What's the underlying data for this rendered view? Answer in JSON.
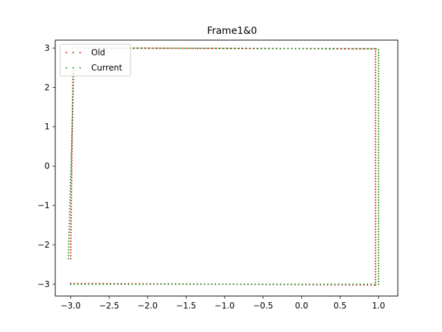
{
  "chart_data": {
    "type": "scatter",
    "title": "Frame1&0",
    "xlabel": "",
    "ylabel": "",
    "xlim": [
      -3.2,
      1.25
    ],
    "ylim": [
      -3.3,
      3.2
    ],
    "xticks": [
      -3.0,
      -2.5,
      -2.0,
      -1.5,
      -1.0,
      -0.5,
      0.0,
      0.5,
      1.0
    ],
    "xtick_labels": [
      "−3.0",
      "−2.5",
      "−2.0",
      "−1.5",
      "−1.0",
      "−0.5",
      "0.0",
      "0.5",
      "1.0"
    ],
    "yticks": [
      -3,
      -2,
      -1,
      0,
      1,
      2,
      3
    ],
    "ytick_labels": [
      "−3",
      "−2",
      "−1",
      "0",
      "1",
      "2",
      "3"
    ],
    "grid": false,
    "legend": {
      "location": "upper-left",
      "entries": [
        {
          "label": "Old",
          "color": "#d62728"
        },
        {
          "label": "Current",
          "color": "#2ca02c"
        }
      ]
    },
    "series": [
      {
        "name": "Old",
        "color": "#d62728",
        "segments": [
          {
            "x": [
              -2.92,
              0.95
            ],
            "y": [
              3.0,
              2.98
            ],
            "n": 80
          },
          {
            "x": [
              0.96,
              0.96
            ],
            "y": [
              2.98,
              -3.02
            ],
            "n": 90
          },
          {
            "x": [
              0.95,
              -3.0
            ],
            "y": [
              -3.02,
              -2.98
            ],
            "n": 85
          },
          {
            "x": [
              -3.0,
              -2.97
            ],
            "y": [
              -2.35,
              2.35
            ],
            "n": 65
          }
        ]
      },
      {
        "name": "Current",
        "color": "#2ca02c",
        "segments": [
          {
            "x": [
              -2.97,
              0.97
            ],
            "y": [
              3.0,
              2.98
            ],
            "n": 80
          },
          {
            "x": [
              1.0,
              1.0
            ],
            "y": [
              2.95,
              -3.0
            ],
            "n": 90
          },
          {
            "x": [
              0.95,
              -3.0
            ],
            "y": [
              -3.0,
              -3.0
            ],
            "n": 85
          },
          {
            "x": [
              -3.03,
              -2.96
            ],
            "y": [
              -2.35,
              2.42
            ],
            "n": 65
          }
        ]
      }
    ]
  }
}
